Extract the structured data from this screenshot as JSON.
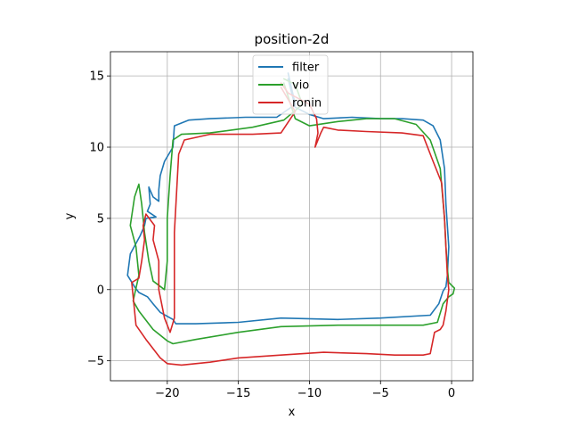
{
  "chart_data": {
    "type": "line",
    "title": "position-2d",
    "xlabel": "x",
    "ylabel": "y",
    "xlim": [
      -24.0,
      1.5
    ],
    "ylim": [
      -6.4,
      16.7
    ],
    "xticks": [
      -20,
      -15,
      -10,
      -5,
      0
    ],
    "yticks": [
      -5,
      0,
      5,
      10,
      15
    ],
    "grid": true,
    "legend_position": "top-center",
    "series": [
      {
        "name": "filter",
        "color": "#1f77b4",
        "x": [
          -11.5,
          -11.0,
          -12.3,
          -14.5,
          -17.0,
          -18.5,
          -19.5,
          -19.6,
          -20.2,
          -20.5,
          -20.6,
          -20.6,
          -21.0,
          -21.3,
          -21.2,
          -21.4,
          -20.8,
          -21.5,
          -21.6,
          -21.9,
          -22.6,
          -22.8,
          -22.3,
          -22.0,
          -21.4,
          -21.0,
          -20.5,
          -19.6,
          -19.4,
          -18.0,
          -15.0,
          -12.0,
          -8.0,
          -5.0,
          -1.5,
          -0.9,
          -0.6,
          -0.4,
          -0.3,
          -0.2,
          -0.3,
          -0.4,
          -0.5,
          -0.8,
          -1.3,
          -2.0,
          -3.5,
          -5.0,
          -7.0,
          -9.0,
          -10.0,
          -11.0,
          -11.5
        ],
        "y": [
          15.2,
          13.0,
          12.1,
          12.1,
          12.0,
          11.9,
          11.5,
          10.0,
          9.0,
          8.0,
          7.0,
          6.2,
          6.5,
          7.2,
          6.0,
          5.5,
          5.1,
          5.0,
          4.5,
          3.8,
          2.5,
          1.0,
          0.2,
          -0.2,
          -0.5,
          -1.0,
          -1.6,
          -2.1,
          -2.4,
          -2.4,
          -2.3,
          -2.0,
          -2.1,
          -2.0,
          -1.8,
          -1.0,
          -0.1,
          0.2,
          1.0,
          3.0,
          4.5,
          6.0,
          8.5,
          10.5,
          11.5,
          11.9,
          12.0,
          12.0,
          12.1,
          12.0,
          12.3,
          12.8,
          14.8
        ]
      },
      {
        "name": "vio",
        "color": "#2ca02c",
        "x": [
          -11.8,
          -11.0,
          -10.5,
          -11.8,
          -14.0,
          -17.0,
          -19.0,
          -19.6,
          -19.8,
          -20.0,
          -20.0,
          -20.2,
          -21.0,
          -21.3,
          -21.6,
          -21.8,
          -22.0,
          -22.3,
          -22.6,
          -22.2,
          -22.0,
          -22.4,
          -22.0,
          -21.0,
          -20.0,
          -19.6,
          -18.0,
          -15.0,
          -12.0,
          -8.0,
          -5.0,
          -2.0,
          -1.0,
          -0.6,
          -0.2,
          0.1,
          0.2,
          -0.2,
          -0.3,
          -0.4,
          -0.5,
          -0.8,
          -1.5,
          -2.5,
          -4.0,
          -6.0,
          -8.0,
          -10.0,
          -11.0,
          -11.8
        ],
        "y": [
          14.8,
          14.4,
          13.0,
          11.9,
          11.4,
          11.0,
          10.9,
          10.5,
          8.0,
          5.0,
          2.0,
          0.0,
          0.6,
          2.0,
          4.0,
          6.0,
          7.4,
          6.5,
          4.5,
          3.0,
          1.0,
          -0.8,
          -1.5,
          -2.8,
          -3.6,
          -3.8,
          -3.5,
          -3.0,
          -2.6,
          -2.5,
          -2.5,
          -2.5,
          -2.3,
          -1.0,
          -0.5,
          -0.3,
          0.1,
          0.5,
          1.5,
          3.0,
          5.0,
          8.5,
          10.5,
          11.6,
          12.0,
          12.0,
          11.8,
          11.5,
          12.0,
          14.5
        ]
      },
      {
        "name": "ronin",
        "color": "#d62728",
        "x": [
          -12.0,
          -11.5,
          -10.0,
          -9.5,
          -9.4,
          -9.6,
          -9.2,
          -9.0,
          -8.0,
          -6.0,
          -3.5,
          -2.0,
          -1.3,
          -0.7,
          -0.5,
          -0.4,
          -0.3,
          -0.2,
          -0.4,
          -0.6,
          -0.8,
          -1.2,
          -1.5,
          -2.0,
          -4.0,
          -6.0,
          -9.0,
          -12.0,
          -15.0,
          -17.0,
          -19.0,
          -20.0,
          -20.5,
          -21.5,
          -22.2,
          -22.5,
          -22.0,
          -21.8,
          -21.6,
          -21.7,
          -21.5,
          -20.9,
          -21.0,
          -20.6,
          -20.6,
          -20.2,
          -19.8,
          -19.5,
          -19.5,
          -19.2,
          -18.8,
          -17.0,
          -14.0,
          -12.0,
          -11.0,
          -12.0
        ],
        "y": [
          14.5,
          13.8,
          13.0,
          12.0,
          11.0,
          10.0,
          11.0,
          11.4,
          11.2,
          11.1,
          11.0,
          10.8,
          9.0,
          7.5,
          5.0,
          3.0,
          1.0,
          0.0,
          -1.5,
          -2.5,
          -2.8,
          -3.0,
          -4.5,
          -4.6,
          -4.6,
          -4.5,
          -4.4,
          -4.6,
          -4.8,
          -5.1,
          -5.3,
          -5.2,
          -4.8,
          -3.5,
          -2.5,
          0.5,
          0.8,
          2.0,
          3.5,
          4.5,
          5.3,
          4.5,
          3.5,
          2.0,
          0.0,
          -2.0,
          -3.0,
          -2.0,
          4.0,
          9.5,
          10.5,
          10.9,
          10.9,
          11.0,
          12.5,
          14.2
        ]
      }
    ]
  }
}
